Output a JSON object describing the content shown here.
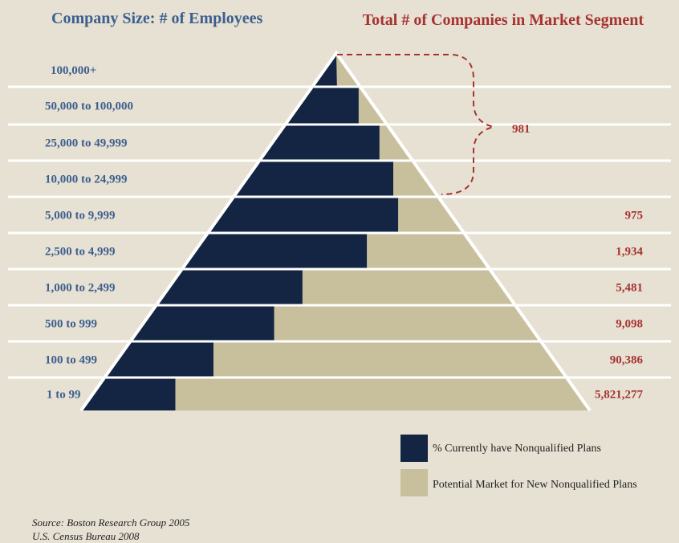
{
  "chart_data": {
    "type": "pyramid",
    "left_header": "Company Size: # of Employees",
    "right_header": "Total # of Companies in Market Segment",
    "rows": [
      {
        "size": "100,000+",
        "pct_current": 0.53,
        "companies": ""
      },
      {
        "size": "50,000 to 100,000",
        "pct_current": 0.8,
        "companies": ""
      },
      {
        "size": "25,000 to 49,999",
        "pct_current": 0.84,
        "companies": ""
      },
      {
        "size": "10,000 to 24,999",
        "pct_current": 0.82,
        "companies": ""
      },
      {
        "size": "5,000 to 9,999",
        "pct_current": 0.77,
        "companies": "975"
      },
      {
        "size": "2,500 to 4,999",
        "pct_current": 0.61,
        "companies": "1,934"
      },
      {
        "size": "1,000 to 2,499",
        "pct_current": 0.4,
        "companies": "5,481"
      },
      {
        "size": "500 to 999",
        "pct_current": 0.34,
        "companies": "9,098"
      },
      {
        "size": "100 to 499",
        "pct_current": 0.22,
        "companies": "90,386"
      },
      {
        "size": "1 to 99",
        "pct_current": 0.17,
        "companies": "5,821,277"
      }
    ],
    "bracket": {
      "rows": [
        "100,000+",
        "50,000 to 100,000",
        "25,000 to 49,999",
        "10,000 to 24,999"
      ],
      "label": "981"
    },
    "legend": [
      {
        "label": "% Currently have Nonqualified Plans",
        "color": "#132543"
      },
      {
        "label": "Potential Market for New Nonqualified Plans",
        "color": "#c8c09d"
      }
    ],
    "source_lines": [
      "Source: Boston Research Group 2005",
      "U.S. Census Bureau 2008"
    ]
  },
  "colors": {
    "background": "#e6e1d2",
    "current": "#132543",
    "potential": "#c8c09d",
    "size_label": "#3d5f8f",
    "count_label": "#a83232",
    "separator": "#ffffff"
  }
}
